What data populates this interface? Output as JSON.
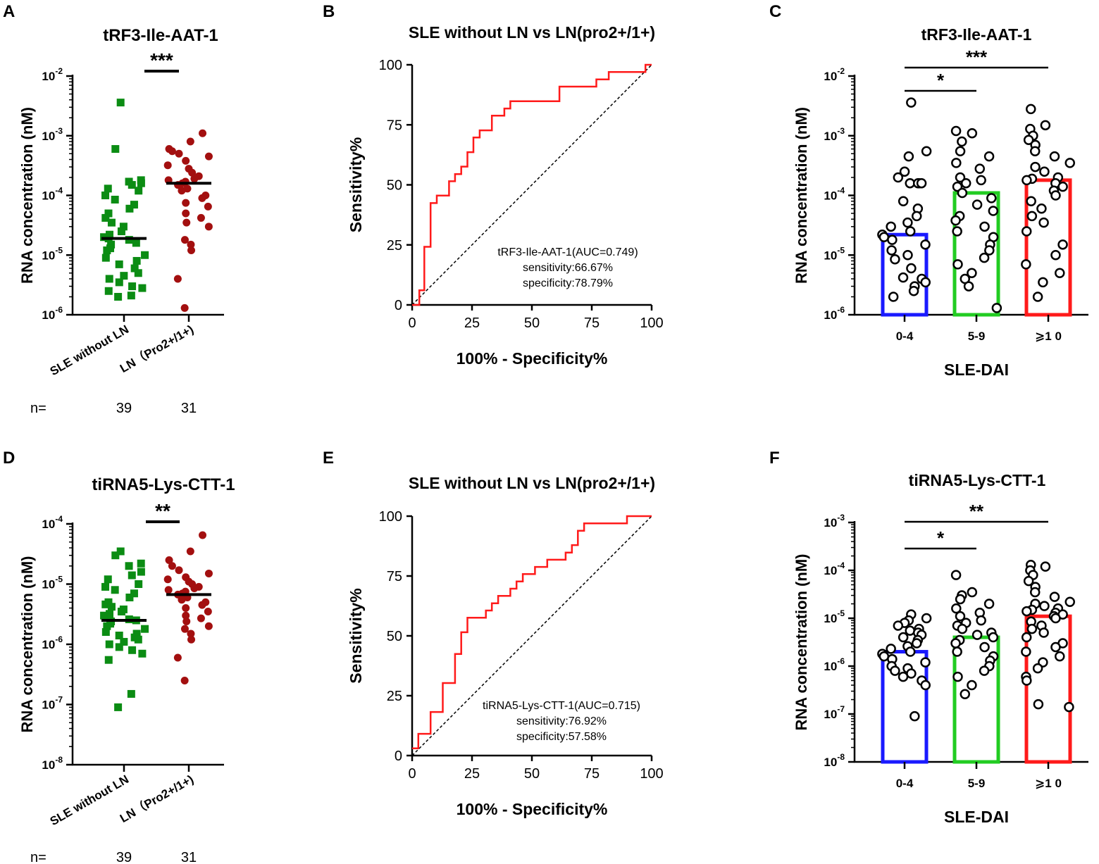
{
  "figure": {
    "colors": {
      "green": "#0b8c13",
      "darkred": "#a30f0f",
      "roc": "#ff1a1a",
      "bar_blue": "#1a1aff",
      "bar_green": "#22cc22",
      "bar_red": "#ff1a1a",
      "ink": "#000000"
    }
  },
  "chart_data": [
    {
      "id": "A",
      "panel_letter": "A",
      "type": "scatter",
      "title": "tRF3-Ile-AAT-1",
      "ylabel": "RNA concentration (nM)",
      "yscale": "log",
      "ylim_exp": [
        -6,
        -2
      ],
      "ytick_exps": [
        "-6",
        "-5",
        "-4",
        "-3",
        "-2"
      ],
      "categories": [
        "SLE without LN",
        "LN（Pro2+/1+)"
      ],
      "n_label": "n=",
      "n_values": [
        "39",
        "31"
      ],
      "significance": "***",
      "medians": [
        1.9e-05,
        0.00016
      ],
      "series": [
        {
          "name": "SLE without LN",
          "marker": "square",
          "values": [
            0.0036,
            0.0006,
            0.00018,
            0.00017,
            0.00016,
            0.00015,
            0.00013,
            0.00012,
            0.0001,
            8.5e-05,
            7e-05,
            6e-05,
            5e-05,
            4.2e-05,
            3.5e-05,
            3e-05,
            2.5e-05,
            2.2e-05,
            2e-05,
            1.9e-05,
            1.8e-05,
            1.6e-05,
            1.5e-05,
            1.3e-05,
            1.2e-05,
            1e-05,
            9e-06,
            8e-06,
            7e-06,
            6e-06,
            5e-06,
            4.5e-06,
            4e-06,
            3.5e-06,
            3e-06,
            2.8e-06,
            2.5e-06,
            2.1e-06,
            2e-06
          ]
        },
        {
          "name": "LN（Pro2+/1+)",
          "marker": "circle",
          "values": [
            0.0011,
            0.0008,
            0.0006,
            0.00055,
            0.0005,
            0.00045,
            0.00038,
            0.00032,
            0.00028,
            0.00024,
            0.00021,
            0.00019,
            0.00018,
            0.00017,
            0.00016,
            0.00015,
            0.00013,
            0.00012,
            0.0001,
            9e-05,
            7.5e-05,
            6.5e-05,
            5e-05,
            4.2e-05,
            3.5e-05,
            3e-05,
            1.8e-05,
            1.5e-05,
            1.2e-05,
            4e-06,
            1.3e-06
          ]
        }
      ]
    },
    {
      "id": "B",
      "panel_letter": "B",
      "type": "line",
      "title": "SLE without LN vs LN(pro2+/1+)",
      "xlabel": "100% - Specificity%",
      "ylabel": "Sensitivity%",
      "xlim": [
        0,
        100
      ],
      "ylim": [
        0,
        100
      ],
      "ticks": [
        "0",
        "25",
        "50",
        "75",
        "100"
      ],
      "annotation": [
        "tRF3-Ile-AAT-1(AUC=0.749)",
        "sensitivity:66.67%",
        "specificity:78.79%"
      ],
      "series": [
        {
          "name": "ROC",
          "x": [
            0,
            3,
            3,
            5.1,
            5.1,
            7.7,
            7.7,
            10.3,
            10.3,
            15.4,
            15.4,
            17.9,
            17.9,
            20.5,
            20.5,
            23.1,
            23.1,
            25.6,
            25.6,
            28.2,
            28.2,
            33.3,
            33.3,
            38.5,
            38.5,
            41,
            41,
            43.6,
            43.6,
            61.5,
            61.5,
            76.9,
            76.9,
            82.1,
            82.1,
            97.4,
            97.4,
            100
          ],
          "y": [
            0,
            0,
            6.1,
            6.1,
            24.2,
            24.2,
            42.4,
            42.4,
            45.5,
            45.5,
            51.5,
            51.5,
            54.5,
            54.5,
            57.6,
            57.6,
            63.6,
            63.6,
            69.7,
            69.7,
            72.7,
            72.7,
            78.8,
            78.8,
            81.8,
            81.8,
            84.8,
            84.8,
            84.8,
            84.8,
            90.9,
            90.9,
            93.9,
            93.9,
            97,
            97,
            100,
            100
          ]
        },
        {
          "name": "reference",
          "x": [
            0,
            100
          ],
          "y": [
            0,
            100
          ]
        }
      ]
    },
    {
      "id": "C",
      "panel_letter": "C",
      "type": "bar",
      "title": "tRF3-Ile-AAT-1",
      "xlabel": "SLE-DAI",
      "ylabel": "RNA concentration (nM)",
      "yscale": "log",
      "ylim_exp": [
        -6,
        -2
      ],
      "ytick_exps": [
        "-6",
        "-5",
        "-4",
        "-3",
        "-2"
      ],
      "categories": [
        "0-4",
        "5-9",
        "⩾1 0"
      ],
      "bar_values": [
        2.2e-05,
        0.00011,
        0.00018
      ],
      "comparisons": [
        {
          "from": 0,
          "to": 1,
          "label": "*"
        },
        {
          "from": 0,
          "to": 2,
          "label": "***"
        }
      ],
      "points": [
        [
          0.0036,
          0.00055,
          0.00045,
          0.00025,
          0.0002,
          0.00016,
          0.00016,
          0.00016,
          0.00016,
          8e-05,
          6e-05,
          4.5e-05,
          3.5e-05,
          3e-05,
          2.5e-05,
          2.2e-05,
          2e-05,
          1.8e-05,
          1.5e-05,
          1.2e-05,
          1e-05,
          8.5e-06,
          6e-06,
          4.2e-06,
          4e-06,
          3.5e-06,
          3e-06,
          2.5e-06,
          2e-06
        ],
        [
          0.0012,
          0.0011,
          0.0008,
          0.00055,
          0.00045,
          0.00035,
          0.00028,
          0.0002,
          0.00018,
          0.00016,
          0.00014,
          0.00011,
          9e-05,
          7e-05,
          5.5e-05,
          4.5e-05,
          3.8e-05,
          3e-05,
          2.5e-05,
          2e-05,
          1.5e-05,
          1.2e-05,
          9e-06,
          7e-06,
          5e-06,
          4e-06,
          3e-06,
          1.3e-06
        ],
        [
          0.0028,
          0.0015,
          0.0013,
          0.001,
          0.00085,
          0.0007,
          0.00055,
          0.00045,
          0.00035,
          0.0003,
          0.00025,
          0.0002,
          0.00019,
          0.00018,
          0.00016,
          0.00014,
          0.00012,
          0.0001,
          8e-05,
          6e-05,
          4.5e-05,
          3.5e-05,
          2.5e-05,
          1.5e-05,
          1e-05,
          7e-06,
          5e-06,
          3.5e-06,
          2e-06
        ]
      ]
    },
    {
      "id": "D",
      "panel_letter": "D",
      "type": "scatter",
      "title": "tiRNA5-Lys-CTT-1",
      "ylabel": "RNA concentration (nM)",
      "yscale": "log",
      "ylim_exp": [
        -8,
        -4
      ],
      "ytick_exps": [
        "-8",
        "-7",
        "-6",
        "-5",
        "-4"
      ],
      "categories": [
        "SLE without LN",
        "LN（Pro2+/1+)"
      ],
      "n_label": "n=",
      "n_values": [
        "39",
        "31"
      ],
      "significance": "**",
      "medians": [
        2.5e-06,
        6.7e-06
      ],
      "series": [
        {
          "name": "SLE without LN",
          "marker": "square",
          "values": [
            3.5e-05,
            3e-05,
            2.2e-05,
            2e-05,
            1.6e-05,
            1.4e-05,
            1.2e-05,
            1e-05,
            9e-06,
            8e-06,
            7e-06,
            6e-06,
            5e-06,
            4.6e-06,
            4.2e-06,
            3.8e-06,
            3.5e-06,
            3.2e-06,
            3e-06,
            2.8e-06,
            2.6e-06,
            2.5e-06,
            2.4e-06,
            2.2e-06,
            2e-06,
            1.8e-06,
            1.6e-06,
            1.5e-06,
            1.4e-06,
            1.3e-06,
            1.2e-06,
            1.1e-06,
            1e-06,
            9e-07,
            8e-07,
            7e-07,
            5.5e-07,
            1.5e-07,
            9e-08
          ]
        },
        {
          "name": "LN（Pro2+/1+)",
          "marker": "circle",
          "values": [
            6.5e-05,
            3.5e-05,
            2.5e-05,
            2e-05,
            1.7e-05,
            1.5e-05,
            1.3e-05,
            1.2e-05,
            1.1e-05,
            1e-05,
            9e-06,
            8.5e-06,
            8e-06,
            7.5e-06,
            7e-06,
            6.7e-06,
            6e-06,
            5.5e-06,
            5e-06,
            4.5e-06,
            4e-06,
            3.5e-06,
            3e-06,
            2.7e-06,
            2.4e-06,
            2e-06,
            1.8e-06,
            1.5e-06,
            1.2e-06,
            6e-07,
            2.5e-07
          ]
        }
      ]
    },
    {
      "id": "E",
      "panel_letter": "E",
      "type": "line",
      "title": "SLE without LN vs LN(pro2+/1+)",
      "xlabel": "100% - Specificity%",
      "ylabel": "Sensitivity%",
      "xlim": [
        0,
        100
      ],
      "ylim": [
        0,
        100
      ],
      "ticks": [
        "0",
        "25",
        "50",
        "75",
        "100"
      ],
      "annotation": [
        "tiRNA5-Lys-CTT-1(AUC=0.715)",
        "sensitivity:76.92%",
        "specificity:57.58%"
      ],
      "series": [
        {
          "name": "ROC",
          "x": [
            0,
            2.6,
            2.6,
            7.7,
            7.7,
            12.8,
            12.8,
            17.9,
            17.9,
            20.5,
            20.5,
            23.1,
            23.1,
            30.8,
            30.8,
            33.3,
            33.3,
            35.9,
            35.9,
            41,
            41,
            43.6,
            43.6,
            46.2,
            46.2,
            51.3,
            51.3,
            56.4,
            56.4,
            64.1,
            64.1,
            66.7,
            66.7,
            69.2,
            69.2,
            71.8,
            71.8,
            89.7,
            89.7,
            94.9,
            94.9,
            100
          ],
          "y": [
            3,
            3,
            9.1,
            9.1,
            18.2,
            18.2,
            30.3,
            30.3,
            42.4,
            42.4,
            51.5,
            51.5,
            57.6,
            57.6,
            60.6,
            60.6,
            63.6,
            63.6,
            66.7,
            66.7,
            69.7,
            69.7,
            72.7,
            72.7,
            75.8,
            75.8,
            78.8,
            78.8,
            81.8,
            81.8,
            84.8,
            84.8,
            87.9,
            87.9,
            93.9,
            93.9,
            97,
            97,
            100,
            100,
            100,
            100
          ]
        },
        {
          "name": "reference",
          "x": [
            0,
            100
          ],
          "y": [
            0,
            100
          ]
        }
      ]
    },
    {
      "id": "F",
      "panel_letter": "F",
      "type": "bar",
      "title": "tiRNA5-Lys-CTT-1",
      "xlabel": "SLE-DAI",
      "ylabel": "RNA concentration (nM)",
      "yscale": "log",
      "ylim_exp": [
        -8,
        -3
      ],
      "ytick_exps": [
        "-8",
        "-7",
        "-6",
        "-5",
        "-4",
        "-3"
      ],
      "categories": [
        "0-4",
        "5-9",
        "⩾1 0"
      ],
      "bar_values": [
        2e-06,
        4e-06,
        1.1e-05
      ],
      "comparisons": [
        {
          "from": 0,
          "to": 1,
          "label": "*"
        },
        {
          "from": 0,
          "to": 2,
          "label": "**"
        }
      ],
      "points": [
        [
          1.2e-05,
          1e-05,
          9e-06,
          8e-06,
          7e-06,
          6e-06,
          5.5e-06,
          5e-06,
          4.5e-06,
          4e-06,
          3.5e-06,
          3e-06,
          2.6e-06,
          2.3e-06,
          2e-06,
          1.8e-06,
          1.6e-06,
          1.4e-06,
          1.2e-06,
          1e-06,
          9e-07,
          8e-07,
          7e-07,
          6e-07,
          5e-07,
          4e-07,
          9e-08
        ],
        [
          8e-05,
          3.5e-05,
          3e-05,
          2.5e-05,
          2e-05,
          1.6e-05,
          1.3e-05,
          1.1e-05,
          9e-06,
          8e-06,
          7e-06,
          6e-06,
          5e-06,
          4.5e-06,
          4e-06,
          3.5e-06,
          3e-06,
          2.5e-06,
          2e-06,
          1.6e-06,
          1.3e-06,
          1e-06,
          8e-07,
          6e-07,
          4e-07,
          2.6e-07
        ],
        [
          0.00013,
          0.00012,
          0.0001,
          8e-05,
          6e-05,
          4.5e-05,
          3.5e-05,
          2.8e-05,
          2.2e-05,
          2e-05,
          1.8e-05,
          1.6e-05,
          1.5e-05,
          1.4e-05,
          1.3e-05,
          1.2e-05,
          1.1e-05,
          1e-05,
          8.5e-06,
          7e-06,
          6e-06,
          5e-06,
          4e-06,
          3e-06,
          2.5e-06,
          2e-06,
          1.6e-06,
          1.2e-06,
          9e-07,
          6e-07,
          5e-07,
          1.6e-07,
          1.4e-07
        ]
      ]
    }
  ]
}
